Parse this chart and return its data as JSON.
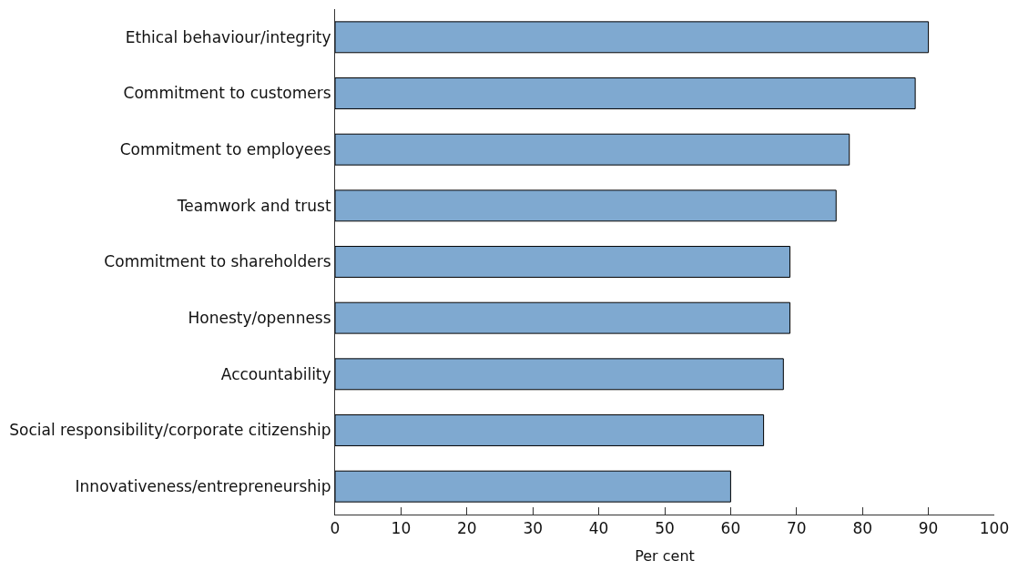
{
  "chart_data": {
    "type": "bar",
    "orientation": "horizontal",
    "xlabel": "Per cent",
    "categories": [
      "Ethical behaviour/integrity",
      "Commitment to customers",
      "Commitment to employees",
      "Teamwork and trust",
      "Commitment to shareholders",
      "Honesty/openness",
      "Accountability",
      "Social responsibility/corporate citizenship",
      "Innovativeness/entrepreneurship"
    ],
    "values": [
      90,
      88,
      78,
      76,
      69,
      69,
      68,
      65,
      60
    ],
    "color": "#7fa9d0",
    "xlim": [
      0,
      100
    ],
    "xticks": [
      0,
      10,
      20,
      30,
      40,
      50,
      60,
      70,
      80,
      90,
      100
    ]
  }
}
